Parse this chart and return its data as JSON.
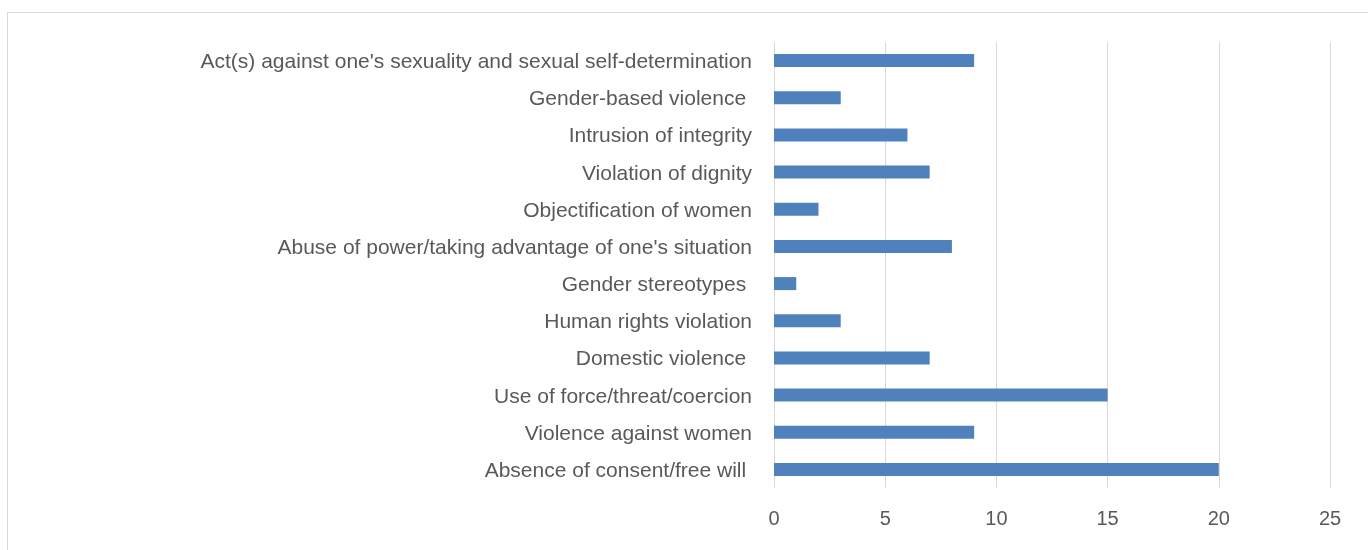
{
  "chart_data": {
    "type": "bar",
    "orientation": "horizontal",
    "categories": [
      "Act(s) against one's sexuality and sexual self-determination",
      "Gender-based violence ",
      "Intrusion of integrity",
      "Violation of dignity",
      "Objectification of women",
      "Abuse of power/taking advantage of one's situation",
      "Gender stereotypes ",
      "Human rights violation",
      "Domestic violence ",
      "Use of force/threat/coercion",
      "Violence against women",
      "Absence of consent/free will "
    ],
    "values": [
      9,
      3,
      6,
      7,
      2,
      8,
      1,
      3,
      7,
      15,
      9,
      20
    ],
    "color": "#4f81bd",
    "xlim": [
      0,
      25
    ],
    "xticks": [
      0,
      5,
      10,
      15,
      20,
      25
    ],
    "grid": "x"
  }
}
